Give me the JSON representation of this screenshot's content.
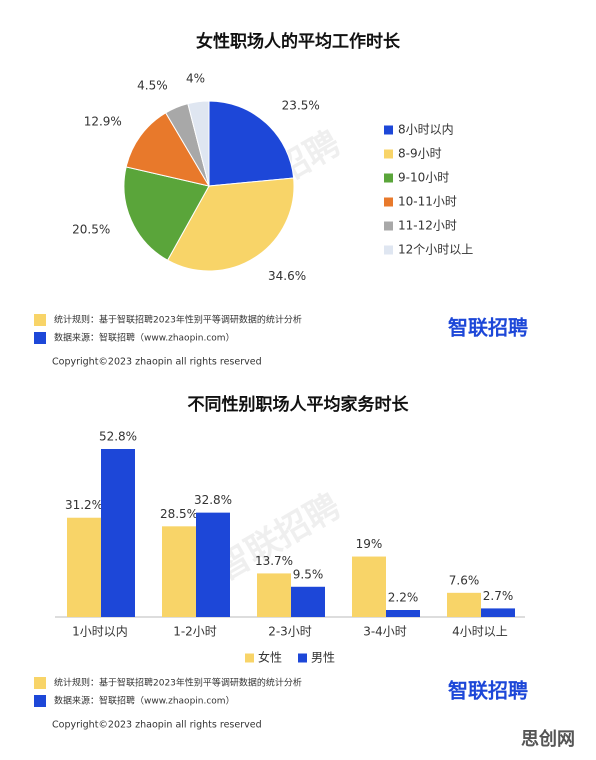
{
  "chart_data": [
    {
      "type": "pie",
      "title": "女性职场人的平均工作时长",
      "categories": [
        "8小时以内",
        "8-9小时",
        "9-10小时",
        "10-11小时",
        "11-12小时",
        "12个小时以上"
      ],
      "values": [
        23.5,
        34.6,
        20.5,
        12.9,
        4.5,
        4
      ],
      "value_labels": [
        "23.5%",
        "34.6%",
        "20.5%",
        "12.9%",
        "4.5%",
        "4%"
      ],
      "colors": [
        "#1d47d8",
        "#f8d468",
        "#5aa53a",
        "#e8792b",
        "#a8a8a8",
        "#dfe6f1"
      ],
      "legend": "right",
      "watermark": "智联招聘",
      "notes": [
        "统计规则：基于智联招聘2023年性别平等调研数据的统计分析",
        "数据来源：智联招聘（www.zhaopin.com）"
      ],
      "logo": "智联招聘",
      "copyright": "Copyright©2023 zhaopin all rights reserved"
    },
    {
      "type": "bar",
      "title": "不同性别职场人平均家务时长",
      "categories": [
        "1小时以内",
        "1-2小时",
        "2-3小时",
        "3-4小时",
        "4小时以上"
      ],
      "series": [
        {
          "name": "女性",
          "color": "#f8d468",
          "values": [
            31.2,
            28.5,
            13.7,
            19,
            7.6
          ],
          "value_labels": [
            "31.2%",
            "28.5%",
            "13.7%",
            "19%",
            "7.6%"
          ]
        },
        {
          "name": "男性",
          "color": "#1d47d8",
          "values": [
            52.8,
            32.8,
            9.5,
            2.2,
            2.7
          ],
          "value_labels": [
            "52.8%",
            "32.8%",
            "9.5%",
            "2.2%",
            "2.7%"
          ]
        }
      ],
      "legend": "bottom",
      "watermark": "智联招聘",
      "notes": [
        "统计规则：基于智联招聘2023年性别平等调研数据的统计分析",
        "数据来源：智联招聘（www.zhaopin.com）"
      ],
      "logo": "智联招聘",
      "copyright": "Copyright©2023 zhaopin all rights reserved"
    }
  ],
  "site_mark": "思创网"
}
